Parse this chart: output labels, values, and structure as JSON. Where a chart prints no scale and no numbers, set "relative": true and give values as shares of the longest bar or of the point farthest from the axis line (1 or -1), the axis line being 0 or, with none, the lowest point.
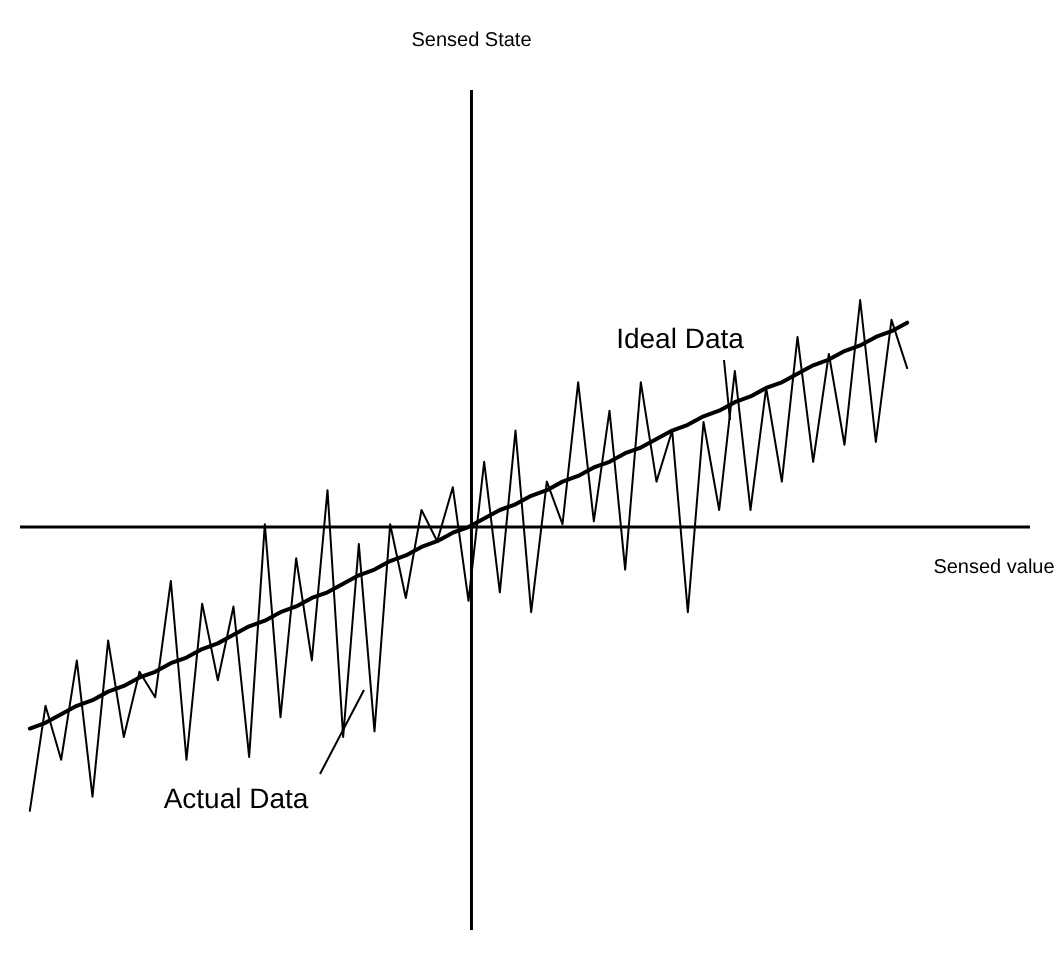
{
  "chart_data": {
    "type": "line",
    "relative": true,
    "xlabel": "Sensed value",
    "categories": [
      null,
      null,
      null,
      null,
      null,
      null,
      null,
      null,
      null,
      null,
      null,
      null,
      null,
      null,
      null,
      null,
      null,
      null,
      null,
      null,
      null,
      null,
      null,
      null,
      null,
      null,
      null,
      null,
      null,
      null,
      null,
      null,
      null,
      null,
      null,
      null,
      null,
      null,
      null,
      null,
      null,
      null,
      null,
      null,
      null,
      null,
      null,
      null,
      null,
      null,
      null,
      null,
      null,
      null,
      null,
      null,
      null
    ],
    "series": [
      {
        "color": "#000000",
        "values": [
          -1.0,
          -0.63,
          -0.82,
          -0.47,
          -0.95,
          -0.4,
          -0.74,
          -0.51,
          -0.6,
          -0.19,
          -0.82,
          -0.27,
          -0.54,
          -0.28,
          -0.81,
          0.01,
          -0.67,
          -0.11,
          -0.47,
          0.13,
          -0.74,
          -0.06,
          -0.72,
          0.01,
          -0.25,
          0.06,
          -0.05,
          0.14,
          -0.26,
          0.23,
          -0.23,
          0.34,
          -0.3,
          0.16,
          0.01,
          0.51,
          0.02,
          0.41,
          -0.15,
          0.51,
          0.16,
          0.34,
          -0.3,
          0.37,
          0.06,
          0.55,
          0.06,
          0.49,
          0.16,
          0.67,
          0.23,
          0.61,
          0.29,
          0.8,
          0.3,
          0.73,
          0.56
        ]
      },
      {
        "color": "#000000",
        "values": [
          -0.71,
          -0.69,
          -0.66,
          -0.63,
          -0.61,
          -0.58,
          -0.56,
          -0.53,
          -0.51,
          -0.48,
          -0.46,
          -0.43,
          -0.41,
          -0.38,
          -0.35,
          -0.33,
          -0.3,
          -0.28,
          -0.25,
          -0.23,
          -0.2,
          -0.17,
          -0.15,
          -0.12,
          -0.1,
          -0.07,
          -0.05,
          -0.02,
          0.0,
          0.03,
          0.06,
          0.08,
          0.11,
          0.13,
          0.16,
          0.18,
          0.21,
          0.23,
          0.26,
          0.28,
          0.31,
          0.34,
          0.36,
          0.39,
          0.41,
          0.44,
          0.46,
          0.49,
          0.51,
          0.54,
          0.57,
          0.59,
          0.62,
          0.64,
          0.67,
          0.69,
          0.72
        ]
      }
    ],
    "annotations": [
      "Ideal Data",
      "Actual Data",
      "Sensed State"
    ],
    "marker": "none",
    "line_style": "solid"
  }
}
